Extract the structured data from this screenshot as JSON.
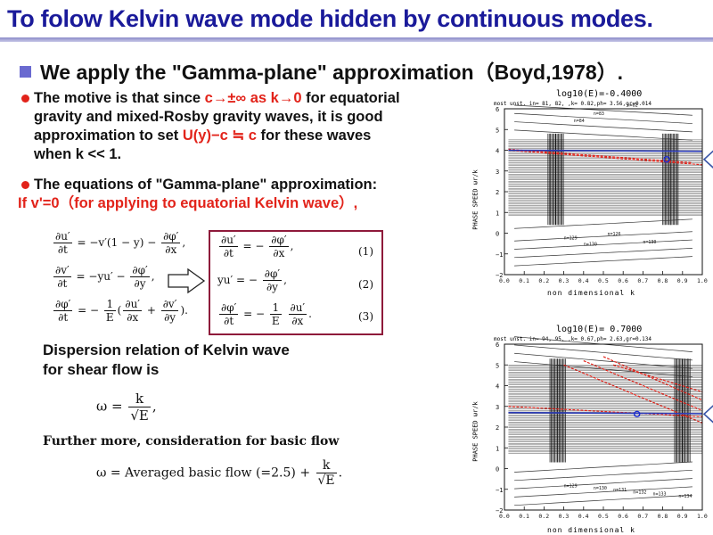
{
  "title": "To folow Kelvin wave mode hidden by continuous modes.",
  "heading": "We apply the \"Gamma-plane\" approximation（Boyd,1978）.",
  "bullet1": {
    "t1": "The motive is that since ",
    "t2": "c→±∞ as k→0",
    "t3": " for equatorial",
    "l2": "gravity and mixed-Rosby gravity waves, it is good",
    "l3a": "approximation to set ",
    "l3b": "U(y)−c ≒ c",
    "l3c": " for these waves",
    "l4": "when k << 1."
  },
  "bullet2": {
    "l1": "The equations of \"Gamma-plane\" approximation:",
    "l2": "If v'=0（for applying to equatorial Kelvin wave）,"
  },
  "eq_numbers": [
    "(1)",
    "(2)",
    "(3)"
  ],
  "dispersion": {
    "l1": "Dispersion relation of Kelvin wave",
    "l2": "for shear flow is"
  },
  "further": "Further more, consideration for basic flow",
  "omega_formula": "ω = Averaged basic flow (=2.5) +",
  "plots": [
    {
      "title": "log10(E)=-0.4000",
      "subtitle": "most unst. in= 81, 82,   ,k= 0.82,ph= 3.56,gr=0.014",
      "ylabel": "PHASE SPEED  ωr/k",
      "xlabel": "non dimensional k",
      "xticks": [
        "0.0",
        "0.1",
        "0.2",
        "0.3",
        "0.4",
        "0.5",
        "0.6",
        "0.7",
        "0.8",
        "0.9",
        "1.0"
      ],
      "yticks": [
        "6",
        "5",
        "4",
        "3",
        "2",
        "1",
        "0",
        "−1",
        "−2"
      ],
      "contour_labels": [
        "n=82",
        "n=83",
        "n=84",
        "n=129",
        "n=130",
        "n=126",
        "n=130"
      ],
      "marked_point": {
        "k": 0.82,
        "c": 3.56
      }
    },
    {
      "title": "log10(E)= 0.7000",
      "subtitle": "most unst. in= 94, 95,   ,k= 0.67,ph= 2.63,gr=0.134",
      "ylabel": "PHASE SPEED  ωr/k",
      "xlabel": "non dimensional k",
      "xticks": [
        "0.0",
        "0.1",
        "0.2",
        "0.3",
        "0.4",
        "0.5",
        "0.6",
        "0.7",
        "0.8",
        "0.9",
        "1.0"
      ],
      "yticks": [
        "6",
        "5",
        "4",
        "3",
        "2",
        "1",
        "0",
        "−1",
        "−2"
      ],
      "contour_labels": [
        "n=129",
        "n=130",
        "n=131",
        "n=132",
        "n=133",
        "n=134"
      ],
      "marked_point": {
        "k": 0.67,
        "c": 2.63
      }
    }
  ],
  "colors": {
    "title": "#1a1a9a",
    "accent": "#e2231a",
    "box": "#8e1a3a",
    "arrow": "#3a56a8"
  }
}
